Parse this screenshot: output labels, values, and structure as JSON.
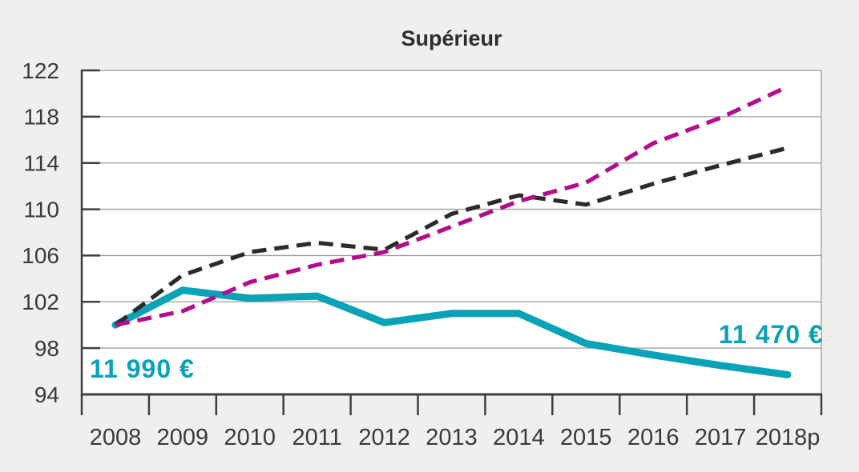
{
  "colors": {
    "background": "#f0efee",
    "plot_background": "#ffffff",
    "grid": "#9b9b9b",
    "axis": "#3f3f3f",
    "text": "#3a3a3d",
    "teal": "#0aa2b6",
    "black_series": "#2b2b2b",
    "magenta_series": "#b30d8c"
  },
  "chart_data": {
    "type": "line",
    "title": "Supérieur",
    "categories": [
      "2008",
      "2009",
      "2010",
      "2011",
      "2012",
      "2013",
      "2014",
      "2015",
      "2016",
      "2017",
      "2018p"
    ],
    "series": [
      {
        "name": "teal-solid",
        "style": "solid",
        "color": "#0aa2b6",
        "values": [
          100,
          103,
          102.3,
          102.5,
          100.2,
          101,
          101,
          98.4,
          97.4,
          96.5,
          95.7
        ]
      },
      {
        "name": "black-dashed",
        "style": "dashed",
        "color": "#2b2b2b",
        "values": [
          100,
          104.3,
          106.3,
          107.1,
          106.5,
          109.6,
          111.2,
          110.4,
          112.2,
          113.8,
          115.3
        ]
      },
      {
        "name": "magenta-dashed",
        "style": "dashed",
        "color": "#b30d8c",
        "values": [
          100,
          101.2,
          103.7,
          105.2,
          106.3,
          108.5,
          110.7,
          112.3,
          115.7,
          117.9,
          120.6
        ]
      }
    ],
    "ylim": [
      94,
      122
    ],
    "y_ticks": [
      122,
      118,
      114,
      110,
      106,
      102,
      98,
      94
    ],
    "grid": true,
    "legend": "none",
    "annotations": [
      {
        "text": "11 990 €",
        "series": "teal-solid",
        "position": "start"
      },
      {
        "text": "11 470 €",
        "series": "teal-solid",
        "position": "end"
      }
    ]
  }
}
